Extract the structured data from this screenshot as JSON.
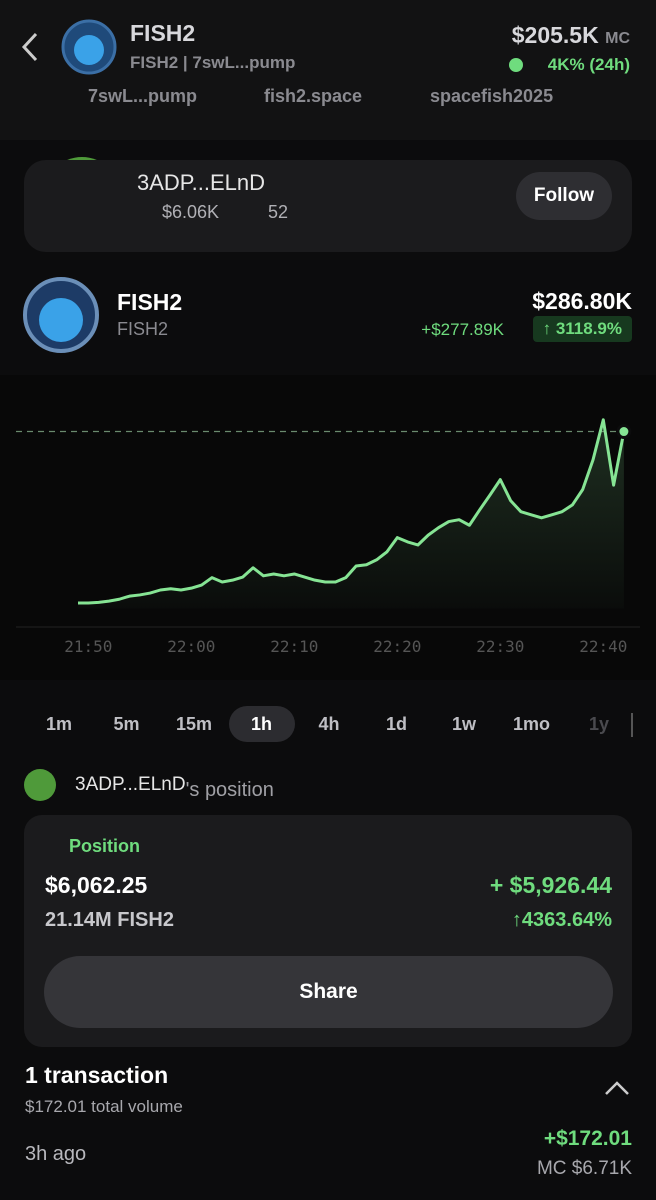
{
  "header": {
    "name": "FISH2",
    "ticker": "FISH2",
    "address": "7swL...pump",
    "market_cap": "$205.5K",
    "mc_label": "MC",
    "change": "4K%",
    "change_period": "(24h)"
  },
  "links": [
    "7swL...pump",
    "fish2.space",
    "spacefish2025"
  ],
  "trader": {
    "name": "3ADP...ELnD",
    "value": "$6.06K",
    "followers": "52",
    "follow_button": "Follow"
  },
  "token": {
    "name": "FISH2",
    "ticker": "FISH2",
    "value": "$286.80K",
    "change": "+$277.89K",
    "change_pct": "↑ 3118.9%"
  },
  "chart_data": {
    "type": "line",
    "x": [
      "21:49",
      "21:50",
      "21:51",
      "21:52",
      "21:53",
      "21:54",
      "21:55",
      "21:56",
      "21:57",
      "21:58",
      "21:59",
      "22:00",
      "22:01",
      "22:02",
      "22:03",
      "22:04",
      "22:05",
      "22:06",
      "22:07",
      "22:08",
      "22:09",
      "22:10",
      "22:11",
      "22:12",
      "22:13",
      "22:14",
      "22:15",
      "22:16",
      "22:17",
      "22:18",
      "22:19",
      "22:20",
      "22:21",
      "22:22",
      "22:23",
      "22:24",
      "22:25",
      "22:26",
      "22:27",
      "22:28",
      "22:29",
      "22:30",
      "22:31",
      "22:32",
      "22:33",
      "22:34",
      "22:35",
      "22:36",
      "22:37",
      "22:38",
      "22:39",
      "22:40",
      "22:41",
      "22:42"
    ],
    "series": [
      {
        "color": "#86e494",
        "values": [
          9,
          9,
          10,
          12,
          15,
          20,
          22,
          25,
          30,
          32,
          30,
          33,
          38,
          50,
          43,
          46,
          51,
          66,
          53,
          56,
          53,
          56,
          51,
          46,
          43,
          43,
          50,
          69,
          71,
          79,
          92,
          115,
          108,
          103,
          119,
          131,
          141,
          144,
          135,
          160,
          184,
          209,
          175,
          157,
          152,
          147,
          152,
          157,
          168,
          193,
          241,
          306,
          200,
          287
        ]
      }
    ],
    "xticks": [
      "21:50",
      "22:00",
      "22:10",
      "22:20",
      "22:30",
      "22:40"
    ],
    "ylim": [
      0,
      330
    ]
  },
  "timeframes": [
    "1m",
    "5m",
    "15m",
    "1h",
    "4h",
    "1d",
    "1w",
    "1mo",
    "1y"
  ],
  "position": {
    "owner": "3ADP...ELnD",
    "suffix": "'s position",
    "label": "Position",
    "value": "$6,062.25",
    "amount": "21.14M FISH2",
    "pnl": "+ $5,926.44",
    "pnl_pct": "↑4363.64%",
    "share": "Share"
  },
  "transactions": {
    "title": "1 transaction",
    "volume": "$172.01 total volume",
    "time": "3h ago",
    "amount": "+$172.01",
    "mc": "MC $6.71K"
  }
}
